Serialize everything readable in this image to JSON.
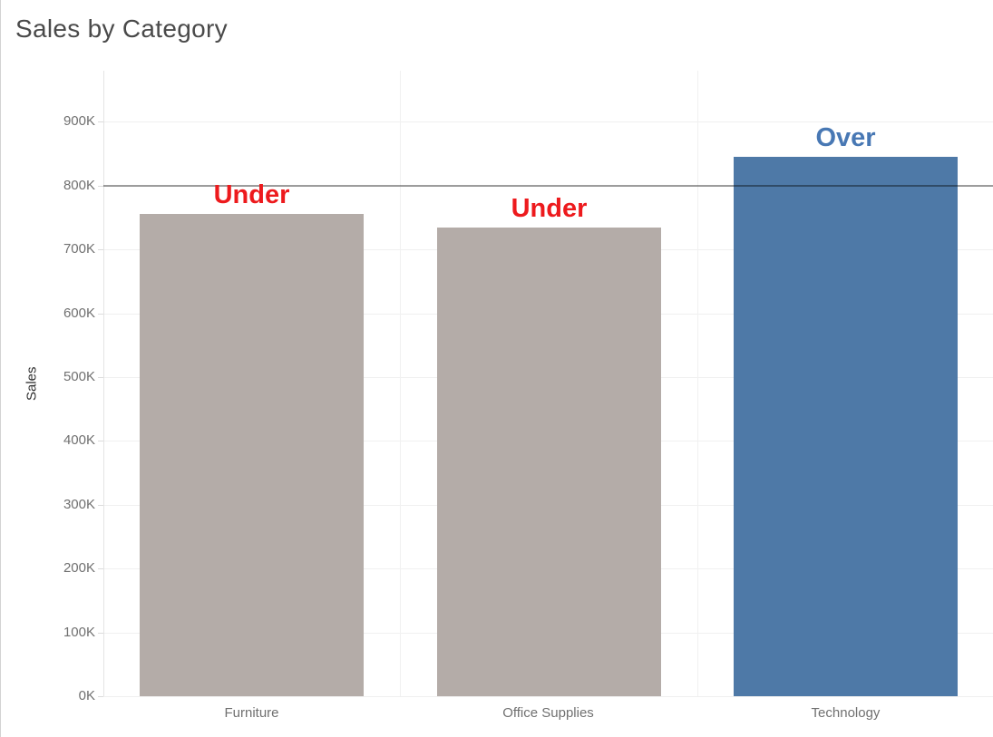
{
  "title": "Sales by Category",
  "chart_data": {
    "type": "bar",
    "title": "Sales by Category",
    "categories": [
      "Furniture",
      "Office Supplies",
      "Technology"
    ],
    "values": [
      755000,
      735000,
      845000
    ],
    "bar_labels": [
      "Under",
      "Under",
      "Over"
    ],
    "bar_colors": [
      "#b4aca8",
      "#b4aca8",
      "#4e79a7"
    ],
    "bar_label_colors": [
      "#ed1a1d",
      "#ed1a1d",
      "#4878b4"
    ],
    "xlabel": "",
    "ylabel": "Sales",
    "ylim": [
      0,
      980000
    ],
    "yticks": [
      0,
      100000,
      200000,
      300000,
      400000,
      500000,
      600000,
      700000,
      800000,
      900000
    ],
    "ytick_labels": [
      "0K",
      "100K",
      "200K",
      "300K",
      "400K",
      "500K",
      "600K",
      "700K",
      "800K",
      "900K"
    ],
    "reference_line": {
      "value": 800000,
      "color": "#9e9e9e"
    },
    "grid": "horizontal-light",
    "legend": "none"
  }
}
